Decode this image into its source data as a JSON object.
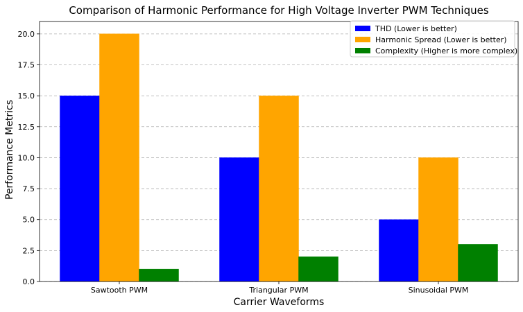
{
  "chart_data": {
    "type": "bar",
    "title": "Comparison of Harmonic Performance for High Voltage Inverter PWM Techniques",
    "xlabel": "Carrier Waveforms",
    "ylabel": "Performance Metrics",
    "categories": [
      "Sawtooth PWM",
      "Triangular PWM",
      "Sinusoidal PWM"
    ],
    "series": [
      {
        "name": "THD (Lower is better)",
        "values": [
          15,
          10,
          5
        ],
        "color": "#0000ff"
      },
      {
        "name": "Harmonic Spread (Lower is better)",
        "values": [
          20,
          15,
          10
        ],
        "color": "#ffa500"
      },
      {
        "name": "Complexity (Higher is more complex)",
        "values": [
          1,
          2,
          3
        ],
        "color": "#008000"
      }
    ],
    "ylim": [
      0,
      21
    ],
    "yticks": [
      "0.0",
      "2.5",
      "5.0",
      "7.5",
      "10.0",
      "12.5",
      "15.0",
      "17.5",
      "20.0"
    ],
    "grid": "y-dashed",
    "legend_position": "top-right"
  }
}
